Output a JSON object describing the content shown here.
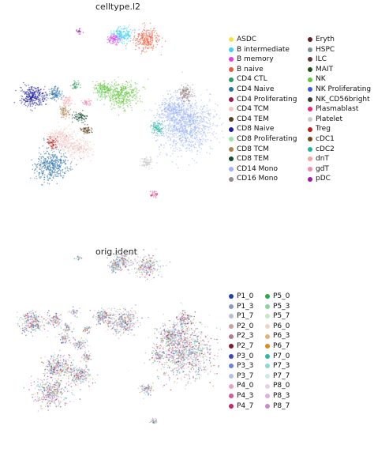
{
  "panels": [
    {
      "title": "celltype.l2",
      "legend": [
        {
          "label": "ASDC",
          "color": "#f2e43a"
        },
        {
          "label": "B intermediate",
          "color": "#3fd0f2"
        },
        {
          "label": "B memory",
          "color": "#e63ce3"
        },
        {
          "label": "B naive",
          "color": "#ec5b3f"
        },
        {
          "label": "CD4 CTL",
          "color": "#2f9a5f"
        },
        {
          "label": "CD4 Naive",
          "color": "#2a6fa5"
        },
        {
          "label": "CD4 Proliferating",
          "color": "#a31a4a"
        },
        {
          "label": "CD4 TCM",
          "color": "#f3c6c4"
        },
        {
          "label": "CD4 TEM",
          "color": "#5a3b1a"
        },
        {
          "label": "CD8 Naive",
          "color": "#1c1c9e"
        },
        {
          "label": "CD8 Proliferating",
          "color": "#96e6a6"
        },
        {
          "label": "CD8 TCM",
          "color": "#a88550"
        },
        {
          "label": "CD8 TEM",
          "color": "#134a30"
        },
        {
          "label": "CD14 Mono",
          "color": "#9db4f7"
        },
        {
          "label": "CD16 Mono",
          "color": "#9a8a8a"
        },
        {
          "label": "Eryth",
          "color": "#5e2323"
        },
        {
          "label": "HSPC",
          "color": "#7b8f8f"
        },
        {
          "label": "ILC",
          "color": "#5b3a3a"
        },
        {
          "label": "MAIT",
          "color": "#1c4f1c"
        },
        {
          "label": "NK",
          "color": "#5fc63b"
        },
        {
          "label": "NK Proliferating",
          "color": "#3b59e0"
        },
        {
          "label": "NK_CD56bright",
          "color": "#3a3a3a"
        },
        {
          "label": "Plasmablast",
          "color": "#e8287a"
        },
        {
          "label": "Platelet",
          "color": "#c8c8c8"
        },
        {
          "label": "Treg",
          "color": "#c01a1a"
        },
        {
          "label": "cDC1",
          "color": "#6b4a1c"
        },
        {
          "label": "cDC2",
          "color": "#1fb59a"
        },
        {
          "label": "dnT",
          "color": "#f5a3a3"
        },
        {
          "label": "gdT",
          "color": "#f08ab5"
        },
        {
          "label": "pDC",
          "color": "#a01aa8"
        }
      ]
    },
    {
      "title": "orig.ident",
      "legend": [
        {
          "label": "P1_0",
          "color": "#1f3fa0"
        },
        {
          "label": "P1_3",
          "color": "#8a98c8"
        },
        {
          "label": "P1_7",
          "color": "#b9bed6"
        },
        {
          "label": "P2_0",
          "color": "#c8a0a0"
        },
        {
          "label": "P2_3",
          "color": "#b87a8a"
        },
        {
          "label": "P2_7",
          "color": "#7a1c2e"
        },
        {
          "label": "P3_0",
          "color": "#3a48b8"
        },
        {
          "label": "P3_3",
          "color": "#6a84d8"
        },
        {
          "label": "P3_7",
          "color": "#b8c0ea"
        },
        {
          "label": "P4_0",
          "color": "#e8a0c8"
        },
        {
          "label": "P4_3",
          "color": "#d05a9a"
        },
        {
          "label": "P4_7",
          "color": "#c0286a"
        },
        {
          "label": "P5_0",
          "color": "#2aa84a"
        },
        {
          "label": "P5_3",
          "color": "#8ad49a"
        },
        {
          "label": "P5_7",
          "color": "#c4e8c8"
        },
        {
          "label": "P6_0",
          "color": "#ead8c4"
        },
        {
          "label": "P6_3",
          "color": "#e8b07a"
        },
        {
          "label": "P6_7",
          "color": "#e08a1a"
        },
        {
          "label": "P7_0",
          "color": "#2ab8a8"
        },
        {
          "label": "P7_3",
          "color": "#8ad8d0"
        },
        {
          "label": "P7_7",
          "color": "#c8ece6"
        },
        {
          "label": "P8_0",
          "color": "#e8d0e6"
        },
        {
          "label": "P8_3",
          "color": "#e0b0da"
        },
        {
          "label": "P8_7",
          "color": "#c88ac8"
        }
      ]
    }
  ]
}
